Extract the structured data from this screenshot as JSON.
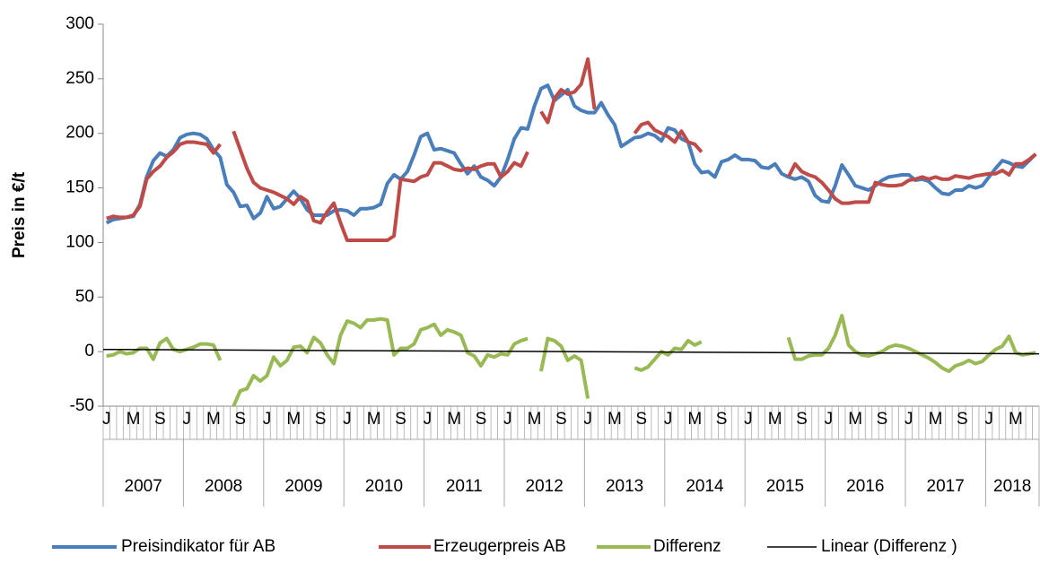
{
  "chart_data": {
    "type": "line",
    "y_label": "Preis in €/t",
    "ylim": [
      -50,
      300
    ],
    "yticks": [
      -50,
      0,
      50,
      100,
      150,
      200,
      250,
      300
    ],
    "categories": [
      "J",
      null,
      null,
      null,
      "M",
      null,
      null,
      null,
      "S",
      null,
      null,
      null,
      "J",
      null,
      null,
      null,
      "M",
      null,
      null,
      null,
      "S",
      null,
      null,
      null,
      "J",
      null,
      null,
      null,
      "M",
      null,
      null,
      null,
      "S",
      null,
      null,
      null,
      "J",
      null,
      null,
      null,
      "M",
      null,
      null,
      null,
      "S",
      null,
      null,
      null,
      "J",
      null,
      null,
      null,
      "M",
      null,
      null,
      null,
      "S",
      null,
      null,
      null,
      "J",
      null,
      null,
      null,
      "M",
      null,
      null,
      null,
      "S",
      null,
      null,
      null,
      "J",
      null,
      null,
      null,
      "M",
      null,
      null,
      null,
      "S",
      null,
      null,
      null,
      "J",
      null,
      null,
      null,
      "M",
      null,
      null,
      null,
      "S",
      null,
      null,
      null,
      "J",
      null,
      null,
      null,
      "M",
      null,
      null,
      null,
      "S",
      null,
      null,
      null,
      "J",
      null,
      null,
      null,
      "M",
      null,
      null,
      null,
      "S",
      null,
      null,
      null,
      "J",
      null,
      null,
      null,
      "M",
      null,
      null,
      null,
      "S",
      null,
      null,
      null,
      "J",
      null,
      null,
      null,
      "M",
      null,
      null,
      null
    ],
    "year_groups": [
      "2007",
      "2008",
      "2009",
      "2010",
      "2011",
      "2012",
      "2013",
      "2014",
      "2015",
      "2016",
      "2017",
      "2018"
    ],
    "series": [
      {
        "name": "Preisindikator für AB",
        "color": "#4a7ebb",
        "values": [
          118,
          121,
          122,
          123,
          124,
          135,
          160,
          175,
          182,
          179,
          185,
          196,
          199,
          200,
          199,
          195,
          185,
          178,
          153,
          146,
          133,
          134,
          122,
          127,
          142,
          131,
          133,
          140,
          147,
          140,
          130,
          125,
          125,
          125,
          129,
          130,
          129,
          125,
          131,
          131,
          132,
          135,
          154,
          162,
          158,
          165,
          180,
          197,
          200,
          185,
          186,
          184,
          182,
          172,
          163,
          170,
          160,
          157,
          152,
          160,
          176,
          195,
          205,
          204,
          225,
          241,
          244,
          230,
          235,
          240,
          225,
          221,
          219,
          219,
          228,
          217,
          208,
          188,
          192,
          196,
          197,
          200,
          198,
          193,
          205,
          203,
          195,
          192,
          172,
          164,
          165,
          160,
          174,
          176,
          180,
          176,
          176,
          175,
          169,
          168,
          172,
          163,
          160,
          158,
          160,
          156,
          143,
          138,
          137,
          152,
          171,
          162,
          152,
          150,
          148,
          152,
          157,
          160,
          161,
          162,
          162,
          157,
          158,
          156,
          150,
          145,
          144,
          148,
          148,
          152,
          150,
          152,
          160,
          168,
          175,
          173,
          170,
          169,
          175,
          181
        ]
      },
      {
        "name": "Erzeugerpreis AB",
        "color": "#be4b48",
        "values": [
          122,
          124,
          123,
          123,
          125,
          133,
          158,
          165,
          170,
          178,
          183,
          190,
          192,
          192,
          191,
          190,
          182,
          190,
          null,
          202,
          185,
          168,
          155,
          150,
          148,
          146,
          143,
          140,
          135,
          142,
          138,
          120,
          118,
          128,
          136,
          118,
          102,
          102,
          102,
          102,
          102,
          102,
          102,
          106,
          158,
          157,
          156,
          160,
          162,
          173,
          173,
          170,
          167,
          166,
          168,
          167,
          170,
          172,
          172,
          160,
          165,
          173,
          170,
          183,
          null,
          220,
          210,
          232,
          240,
          236,
          238,
          245,
          268,
          222,
          null,
          null,
          null,
          null,
          null,
          200,
          208,
          210,
          203,
          200,
          197,
          192,
          202,
          192,
          190,
          183,
          null,
          null,
          null,
          null,
          null,
          null,
          null,
          null,
          null,
          null,
          null,
          null,
          160,
          172,
          165,
          162,
          160,
          155,
          148,
          140,
          136,
          136,
          137,
          137,
          137,
          155,
          153,
          152,
          152,
          153,
          157,
          158,
          160,
          158,
          160,
          158,
          158,
          161,
          160,
          159,
          161,
          162,
          163,
          163,
          166,
          162,
          172,
          172,
          176,
          181
        ]
      },
      {
        "name": "Differenz",
        "color": "#98b954",
        "values": [
          -4,
          -3,
          0,
          -2,
          -1,
          3,
          3,
          -7,
          8,
          12,
          2,
          0,
          2,
          4,
          7,
          7,
          6,
          -8,
          null,
          -50,
          -36,
          -34,
          -22,
          -27,
          -22,
          -5,
          -13,
          -8,
          4,
          5,
          -1,
          13,
          8,
          -3,
          -11,
          15,
          28,
          26,
          22,
          29,
          29,
          30,
          29,
          -3,
          3,
          3,
          7,
          20,
          22,
          25,
          15,
          20,
          18,
          15,
          -1,
          -4,
          -13,
          -3,
          -5,
          -2,
          -3,
          7,
          10,
          12,
          null,
          -18,
          12,
          10,
          5,
          -8,
          -4,
          -8,
          -43,
          null,
          null,
          null,
          null,
          null,
          null,
          -15,
          -17,
          -14,
          -7,
          0,
          -3,
          3,
          2,
          10,
          6,
          9,
          null,
          null,
          null,
          null,
          null,
          null,
          null,
          null,
          null,
          null,
          null,
          null,
          13,
          -7,
          -7,
          -4,
          -3,
          -3,
          3,
          15,
          33,
          6,
          0,
          -3,
          -4,
          -2,
          0,
          4,
          6,
          5,
          3,
          0,
          -3,
          -6,
          -10,
          -15,
          -18,
          -13,
          -11,
          -8,
          -11,
          -9,
          -3,
          2,
          5,
          14,
          -1,
          -3,
          -2,
          -1
        ]
      }
    ],
    "trendline": {
      "name": "Linear (Differenz )",
      "color": "#000000",
      "start": 2,
      "end": -2
    }
  }
}
